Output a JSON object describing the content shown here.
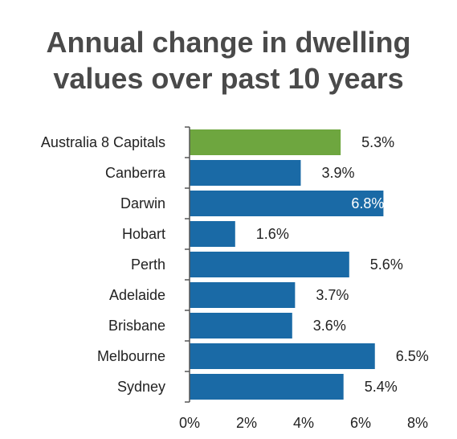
{
  "chart_data": {
    "type": "bar",
    "orientation": "horizontal",
    "title_lines": [
      "Annual change in dwelling",
      "values over past 10 years"
    ],
    "categories": [
      "Australia  8 Capitals",
      "Canberra",
      "Darwin",
      "Hobart",
      "Perth",
      "Adelaide",
      "Brisbane",
      "Melbourne",
      "Sydney"
    ],
    "values": [
      5.3,
      3.9,
      6.8,
      1.6,
      5.6,
      3.7,
      3.6,
      6.5,
      5.4
    ],
    "value_labels": [
      "5.3%",
      "3.9%",
      "6.8%",
      "1.6%",
      "5.6%",
      "3.7%",
      "3.6%",
      "6.5%",
      "5.4%"
    ],
    "xlim": [
      0,
      8
    ],
    "x_ticks": [
      0,
      2,
      4,
      6,
      8
    ],
    "x_tick_labels": [
      "0%",
      "2%",
      "4%",
      "6%",
      "8%"
    ],
    "xlabel": "",
    "ylabel": "",
    "grid": false,
    "legend": false,
    "colors": {
      "highlight": "#6ea63f",
      "default": "#1a6aa6",
      "axis": "#555555"
    },
    "highlight_index": 0
  }
}
